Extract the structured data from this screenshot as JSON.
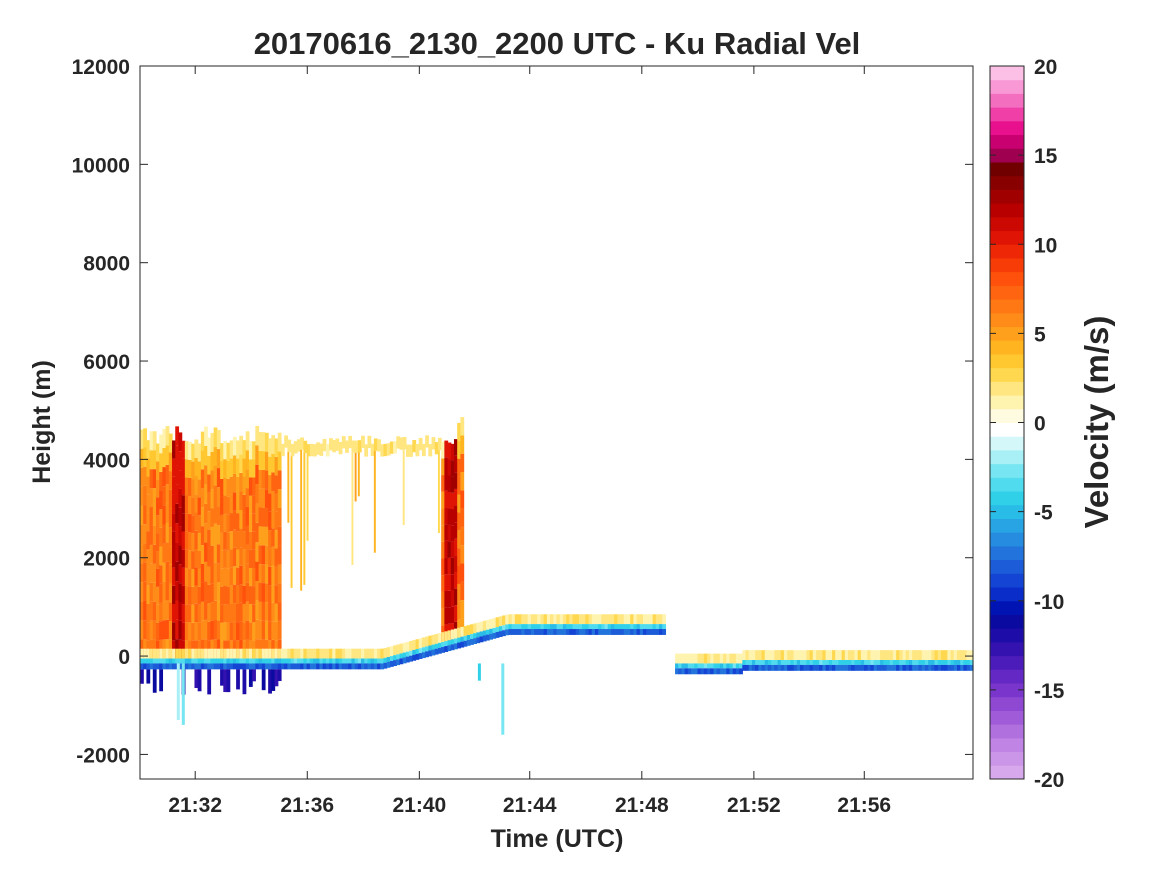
{
  "chart_data": {
    "type": "heatmap",
    "title": "20170616_2130_2200 UTC - Ku Radial Vel",
    "xlabel": "Time (UTC)",
    "ylabel": "Height (m)",
    "x_range_minutes": [
      21.5,
      21.998
    ],
    "x_ticks": [
      {
        "label": "21:32",
        "value": 21.533
      },
      {
        "label": "21:36",
        "value": 21.6
      },
      {
        "label": "21:40",
        "value": 21.667
      },
      {
        "label": "21:44",
        "value": 21.733
      },
      {
        "label": "21:48",
        "value": 21.8
      },
      {
        "label": "21:52",
        "value": 21.867
      },
      {
        "label": "21:56",
        "value": 21.933
      }
    ],
    "ylim": [
      -2500,
      12000
    ],
    "y_ticks": [
      -2000,
      0,
      2000,
      4000,
      6000,
      8000,
      10000,
      12000
    ],
    "colorbar": {
      "label": "Velocity (m/s)",
      "range": [
        -20,
        20
      ],
      "ticks": [
        -20,
        -15,
        -10,
        -5,
        0,
        5,
        10,
        15,
        20
      ],
      "colors": [
        "#d8a8ec",
        "#cc96e8",
        "#bf84e4",
        "#b070de",
        "#a05cd8",
        "#8e48d2",
        "#7a36cc",
        "#6428c4",
        "#4c1cba",
        "#3412b0",
        "#1e0ca8",
        "#0a0aa0",
        "#0014b4",
        "#0a2cc8",
        "#1444d4",
        "#1c5cd8",
        "#2274dc",
        "#268ce0",
        "#28a4e4",
        "#28bce6",
        "#30d0e8",
        "#50dcee",
        "#78e6f2",
        "#a8f0f6",
        "#d4f8fa",
        "#ffffff",
        "#fffbe0",
        "#fff3b0",
        "#ffe680",
        "#ffd850",
        "#ffc830",
        "#ffb420",
        "#ffa01c",
        "#ff8c18",
        "#ff7814",
        "#ff6410",
        "#ff500c",
        "#f83c08",
        "#ee2806",
        "#e01404",
        "#cc0802",
        "#b80000",
        "#a00000",
        "#880000",
        "#700000",
        "#a00050",
        "#c80070",
        "#e8108c",
        "#f040a8",
        "#f46ec0",
        "#f898d4",
        "#fcc0e6"
      ]
    },
    "series": [
      {
        "description": "time-height radial velocity field",
        "notes": "precipitation echo 0-5000 m from 21:30 to 21:43 UTC, surface return near 0-800 m through 22:00"
      }
    ]
  }
}
